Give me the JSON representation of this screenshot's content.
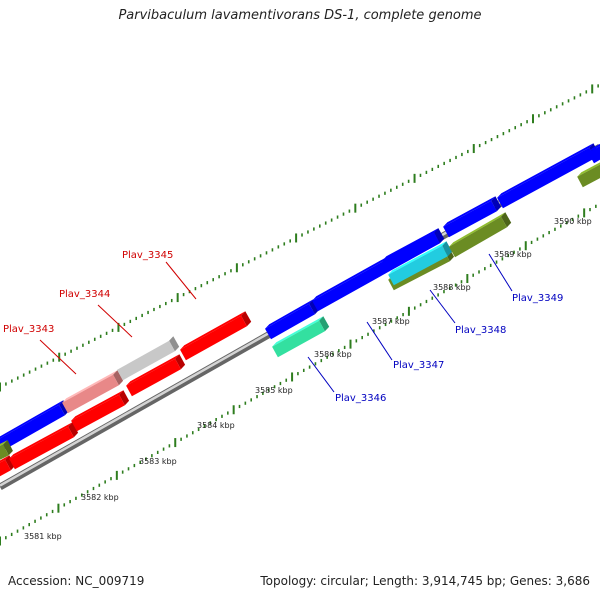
{
  "title": "Parvibaculum lavamentivorans DS-1, complete genome",
  "footer": {
    "accession": "Accession: NC_009719",
    "topology": "Topology: circular; Length: 3,914,745 bp; Genes: 3,686"
  },
  "axis": {
    "tick_labels": [
      "3581 kbp",
      "3582 kbp",
      "3583 kbp",
      "3584 kbp",
      "3585 kbp",
      "3586 kbp",
      "3587 kbp",
      "3588 kbp",
      "3589 kbp",
      "3590 kbp"
    ]
  },
  "colors": {
    "backbone": "#999999",
    "tick": "#2e7d1e",
    "forward_label": "#d00000",
    "reverse_label": "#0000c0"
  },
  "genes": [
    {
      "id": "Plav_3343",
      "color": "#e88888",
      "strand": "forward",
      "labeled": true
    },
    {
      "id": "Plav_3344",
      "color": "#c8c8c8",
      "strand": "forward",
      "labeled": true
    },
    {
      "id": "Plav_3345",
      "color": "#ff0000",
      "strand": "forward",
      "labeled": true
    },
    {
      "id": "Plav_3346",
      "color": "#33e0a0",
      "strand": "reverse",
      "labeled": true
    },
    {
      "id": "Plav_3347",
      "color": "#0000ff",
      "strand": "forward",
      "labeled": true
    },
    {
      "id": "Plav_3348",
      "color": "#22cce0",
      "strand": "reverse",
      "labeled": true
    },
    {
      "id": "Plav_3349",
      "color": "#6b8c23",
      "strand": "reverse",
      "labeled": true
    }
  ]
}
